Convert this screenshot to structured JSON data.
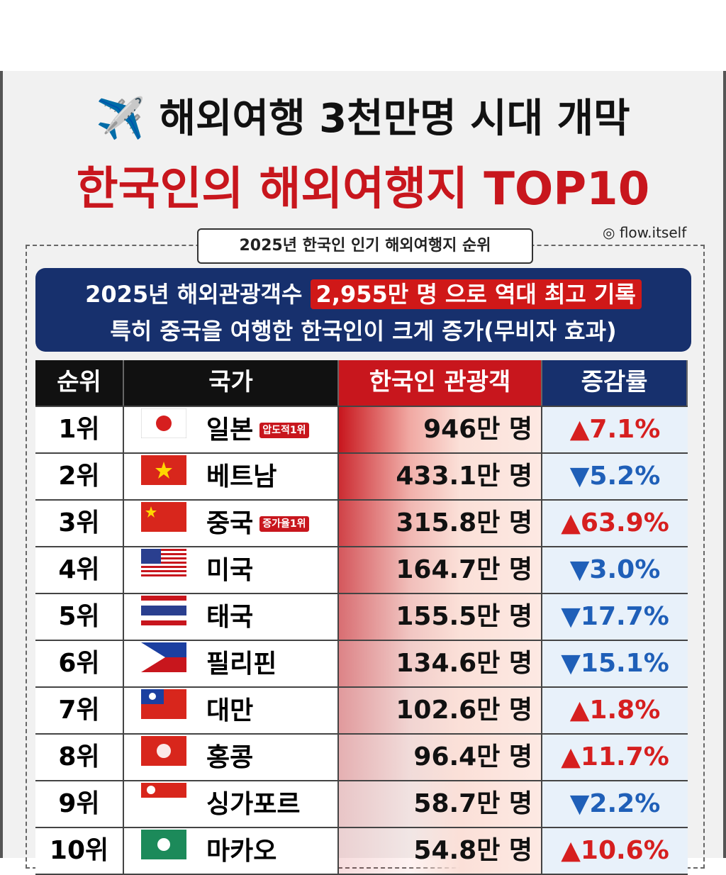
{
  "header": {
    "title": "해외여행 3천만명 시대 개막",
    "subtitle": "한국인의 해외여행지 TOP10",
    "handle": "flow.itself"
  },
  "section_label": "2025년 한국인 인기 해외여행지 순위",
  "banner": {
    "line1_lead": "2025년 해외관광객수",
    "line1_highlight": "2,955만 명 으로 역대 최고 기록",
    "line2": "특히 중국을 여행한 한국인이 크게 증가(무비자 효과)"
  },
  "table": {
    "headers": [
      "순위",
      "국가",
      "한국인 관광객",
      "증감률"
    ],
    "rows": [
      {
        "rank": "1위",
        "country": "일본",
        "badge": "압도적1위",
        "visitors": "946만 명",
        "change": "▲7.1%",
        "change_color": "#d61f1f"
      },
      {
        "rank": "2위",
        "country": "베트남",
        "visitors": "433.1만 명",
        "change": "▼5.2%",
        "change_color": "#1f5fb8"
      },
      {
        "rank": "3위",
        "country": "중국",
        "badge": "증가율1위",
        "visitors": "315.8만 명",
        "change": "▲63.9%",
        "change_color": "#d61f1f"
      },
      {
        "rank": "4위",
        "country": "미국",
        "visitors": "164.7만 명",
        "change": "▼3.0%",
        "change_color": "#1f5fb8"
      },
      {
        "rank": "5위",
        "country": "태국",
        "visitors": "155.5만 명",
        "change": "▼17.7%",
        "change_color": "#1f5fb8"
      },
      {
        "rank": "6위",
        "country": "필리핀",
        "visitors": "134.6만 명",
        "change": "▼15.1%",
        "change_color": "#1f5fb8"
      },
      {
        "rank": "7위",
        "country": "대만",
        "visitors": "102.6만 명",
        "change": "▲1.8%",
        "change_color": "#d61f1f"
      },
      {
        "rank": "8위",
        "country": "홍콩",
        "visitors": "96.4만 명",
        "change": "▲11.7%",
        "change_color": "#d61f1f"
      },
      {
        "rank": "9위",
        "country": "싱가포르",
        "visitors": "58.7만 명",
        "change": "▼2.2%",
        "change_color": "#1f5fb8"
      },
      {
        "rank": "10위",
        "country": "마카오",
        "visitors": "54.8만 명",
        "change": "▲10.6%",
        "change_color": "#d61f1f"
      }
    ]
  }
}
